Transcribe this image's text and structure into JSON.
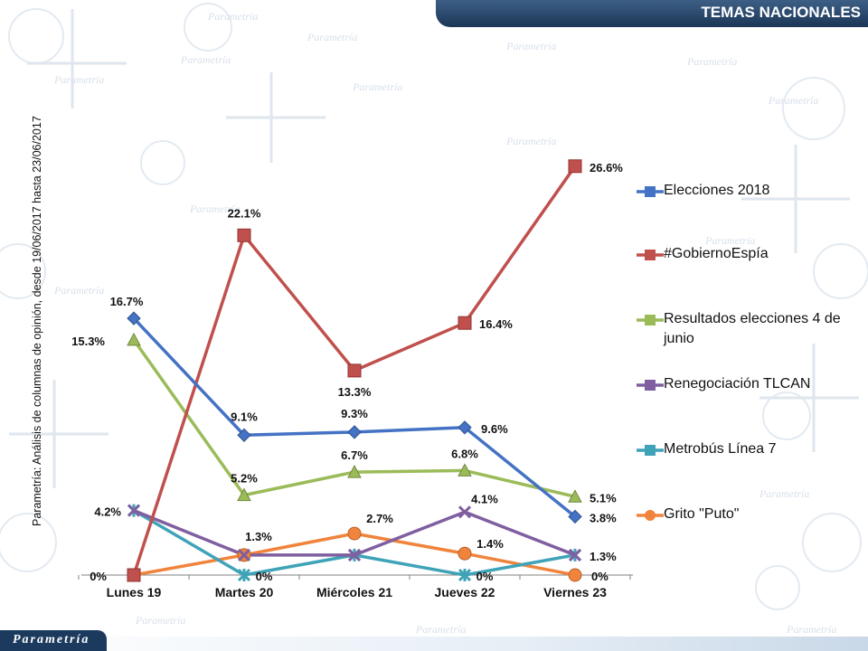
{
  "header": {
    "title": "TEMAS NACIONALES"
  },
  "side_note": "Parametría: Análisis de columnas de opinión, desde 19/06/2017 hasta 23/06/2017",
  "footer": {
    "logo_text": "Parametría"
  },
  "watermark_text": "Parametría",
  "chart_data": {
    "type": "line",
    "title": "",
    "xlabel": "",
    "ylabel": "",
    "ylim": [
      0,
      30
    ],
    "grid": false,
    "legend_position": "right",
    "categories": [
      "Lunes 19",
      "Martes 20",
      "Miércoles 21",
      "Jueves 22",
      "Viernes 23"
    ],
    "series": [
      {
        "name": "Elecciones 2018",
        "color": "#4472c4",
        "marker": "diamond",
        "values": [
          16.7,
          9.1,
          9.3,
          9.6,
          3.8
        ],
        "labels": [
          "16.7%",
          "9.1%",
          "9.3%",
          "9.6%",
          "3.8%"
        ]
      },
      {
        "name": "#GobiernoEspía",
        "color": "#c0504d",
        "marker": "square",
        "values": [
          0,
          22.1,
          13.3,
          16.4,
          26.6
        ],
        "labels": [
          "0%",
          "22.1%",
          "13.3%",
          "16.4%",
          "26.6%"
        ]
      },
      {
        "name": "Resultados elecciones 4 de junio",
        "color": "#9bbb59",
        "marker": "triangle",
        "values": [
          15.3,
          5.2,
          6.7,
          6.8,
          5.1
        ],
        "labels": [
          "15.3%",
          "5.2%",
          "6.7%",
          "6.8%",
          "5.1%"
        ]
      },
      {
        "name": "Renegociación TLCAN",
        "color": "#7f5fa0",
        "marker": "x",
        "values": [
          4.2,
          1.3,
          1.3,
          4.1,
          1.3
        ],
        "labels": [
          "",
          "",
          "",
          "4.1%",
          ""
        ]
      },
      {
        "name": "Metrobús Línea 7",
        "color": "#3fa3b8",
        "marker": "star",
        "values": [
          4.2,
          0,
          1.3,
          0,
          1.3
        ],
        "labels": [
          "4.2%",
          "0%",
          "",
          "0%",
          "1.3%"
        ]
      },
      {
        "name": "Grito \"Puto\"",
        "color": "#f0843c",
        "marker": "circle",
        "values": [
          0,
          1.3,
          2.7,
          1.4,
          0
        ],
        "labels": [
          "",
          "1.3%",
          "2.7%",
          "1.4%",
          "0%"
        ]
      }
    ]
  }
}
